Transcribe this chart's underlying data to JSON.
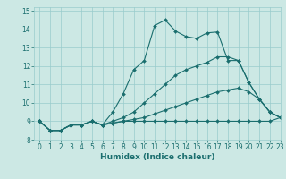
{
  "xlabel": "Humidex (Indice chaleur)",
  "bg_color": "#cce8e4",
  "grid_color": "#99cccc",
  "line_color": "#1a6e6e",
  "xlim": [
    -0.5,
    23
  ],
  "ylim": [
    8,
    15.2
  ],
  "xticks": [
    0,
    1,
    2,
    3,
    4,
    5,
    6,
    7,
    8,
    9,
    10,
    11,
    12,
    13,
    14,
    15,
    16,
    17,
    18,
    19,
    20,
    21,
    22,
    23
  ],
  "yticks": [
    8,
    9,
    10,
    11,
    12,
    13,
    14,
    15
  ],
  "lines": [
    {
      "x": [
        0,
        1,
        2,
        3,
        4,
        5,
        6,
        7,
        8,
        9,
        10,
        11,
        12,
        13,
        14,
        15,
        16,
        17,
        18,
        19,
        20,
        21,
        22,
        23
      ],
      "y": [
        9.0,
        8.5,
        8.5,
        8.8,
        8.8,
        9.0,
        8.8,
        9.5,
        10.5,
        11.8,
        12.3,
        14.2,
        14.5,
        13.9,
        13.6,
        13.5,
        13.8,
        13.85,
        12.3,
        12.3,
        11.1,
        10.2,
        9.5,
        9.2
      ]
    },
    {
      "x": [
        0,
        1,
        2,
        3,
        4,
        5,
        6,
        7,
        8,
        9,
        10,
        11,
        12,
        13,
        14,
        15,
        16,
        17,
        18,
        19,
        20,
        21,
        22,
        23
      ],
      "y": [
        9.0,
        8.5,
        8.5,
        8.8,
        8.8,
        9.0,
        8.8,
        9.0,
        9.2,
        9.5,
        10.0,
        10.5,
        11.0,
        11.5,
        11.8,
        12.0,
        12.2,
        12.5,
        12.5,
        12.3,
        11.1,
        10.2,
        9.5,
        9.2
      ]
    },
    {
      "x": [
        0,
        1,
        2,
        3,
        4,
        5,
        6,
        7,
        8,
        9,
        10,
        11,
        12,
        13,
        14,
        15,
        16,
        17,
        18,
        19,
        20,
        21,
        22,
        23
      ],
      "y": [
        9.0,
        8.5,
        8.5,
        8.8,
        8.8,
        9.0,
        8.8,
        8.9,
        9.0,
        9.0,
        9.0,
        9.0,
        9.0,
        9.0,
        9.0,
        9.0,
        9.0,
        9.0,
        9.0,
        9.0,
        9.0,
        9.0,
        9.0,
        9.2
      ]
    },
    {
      "x": [
        0,
        1,
        2,
        3,
        4,
        5,
        6,
        7,
        8,
        9,
        10,
        11,
        12,
        13,
        14,
        15,
        16,
        17,
        18,
        19,
        20,
        21,
        22,
        23
      ],
      "y": [
        9.0,
        8.5,
        8.5,
        8.8,
        8.8,
        9.0,
        8.8,
        8.9,
        9.0,
        9.1,
        9.2,
        9.4,
        9.6,
        9.8,
        10.0,
        10.2,
        10.4,
        10.6,
        10.7,
        10.8,
        10.6,
        10.2,
        9.5,
        9.2
      ]
    }
  ]
}
